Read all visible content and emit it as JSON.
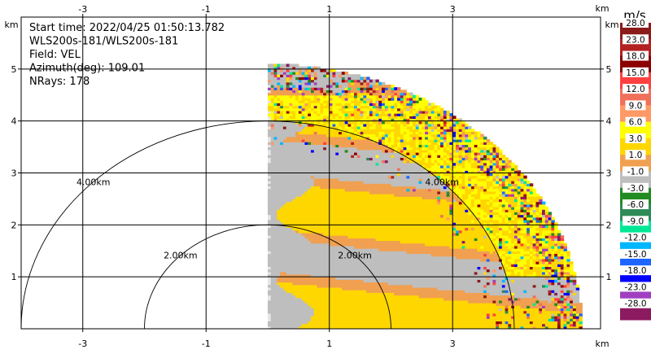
{
  "chart_data": {
    "type": "heatmap",
    "info": [
      "Start time: 2022/04/25 01:50:13.782",
      "WLS200s-181/WLS200s-181",
      "Field: VEL",
      "Azimuth(deg): 109.01",
      "NRays: 178"
    ],
    "x_ticks": [
      -3,
      -1,
      1,
      3
    ],
    "y_ticks": [
      1,
      2,
      3,
      4,
      5
    ],
    "xlim": [
      -4.0,
      5.4
    ],
    "ylim": [
      0,
      6.0
    ],
    "x_unit": "km",
    "y_unit": "km",
    "grid": true,
    "range_rings": [
      {
        "radius_km": 2.0,
        "label": "2.00km"
      },
      {
        "radius_km": 4.0,
        "label": "4.00km"
      }
    ],
    "sector": {
      "x_min_km": 0.0,
      "max_range_km": 5.1
    },
    "colorbar": {
      "unit": "m/s",
      "boundaries": [
        "28.0",
        "23.0",
        "18.0",
        "15.0",
        "12.0",
        "9.0",
        "6.0",
        "3.0",
        "1.0",
        "-1.0",
        "-3.0",
        "-6.0",
        "-9.0",
        "-12.0",
        "-15.0",
        "-18.0",
        "-23.0",
        "-28.0"
      ],
      "colors": [
        "#8b1a1a",
        "#b22222",
        "#8b0000",
        "#ff4040",
        "#f0705a",
        "#ff9966",
        "#ffff00",
        "#ffd700",
        "#f0a050",
        "#bebebe",
        "#228b22",
        "#2e8b57",
        "#00e896",
        "#00b7ff",
        "#1e64ff",
        "#0000ff",
        "#a040c0",
        "#8b1a60"
      ]
    }
  }
}
